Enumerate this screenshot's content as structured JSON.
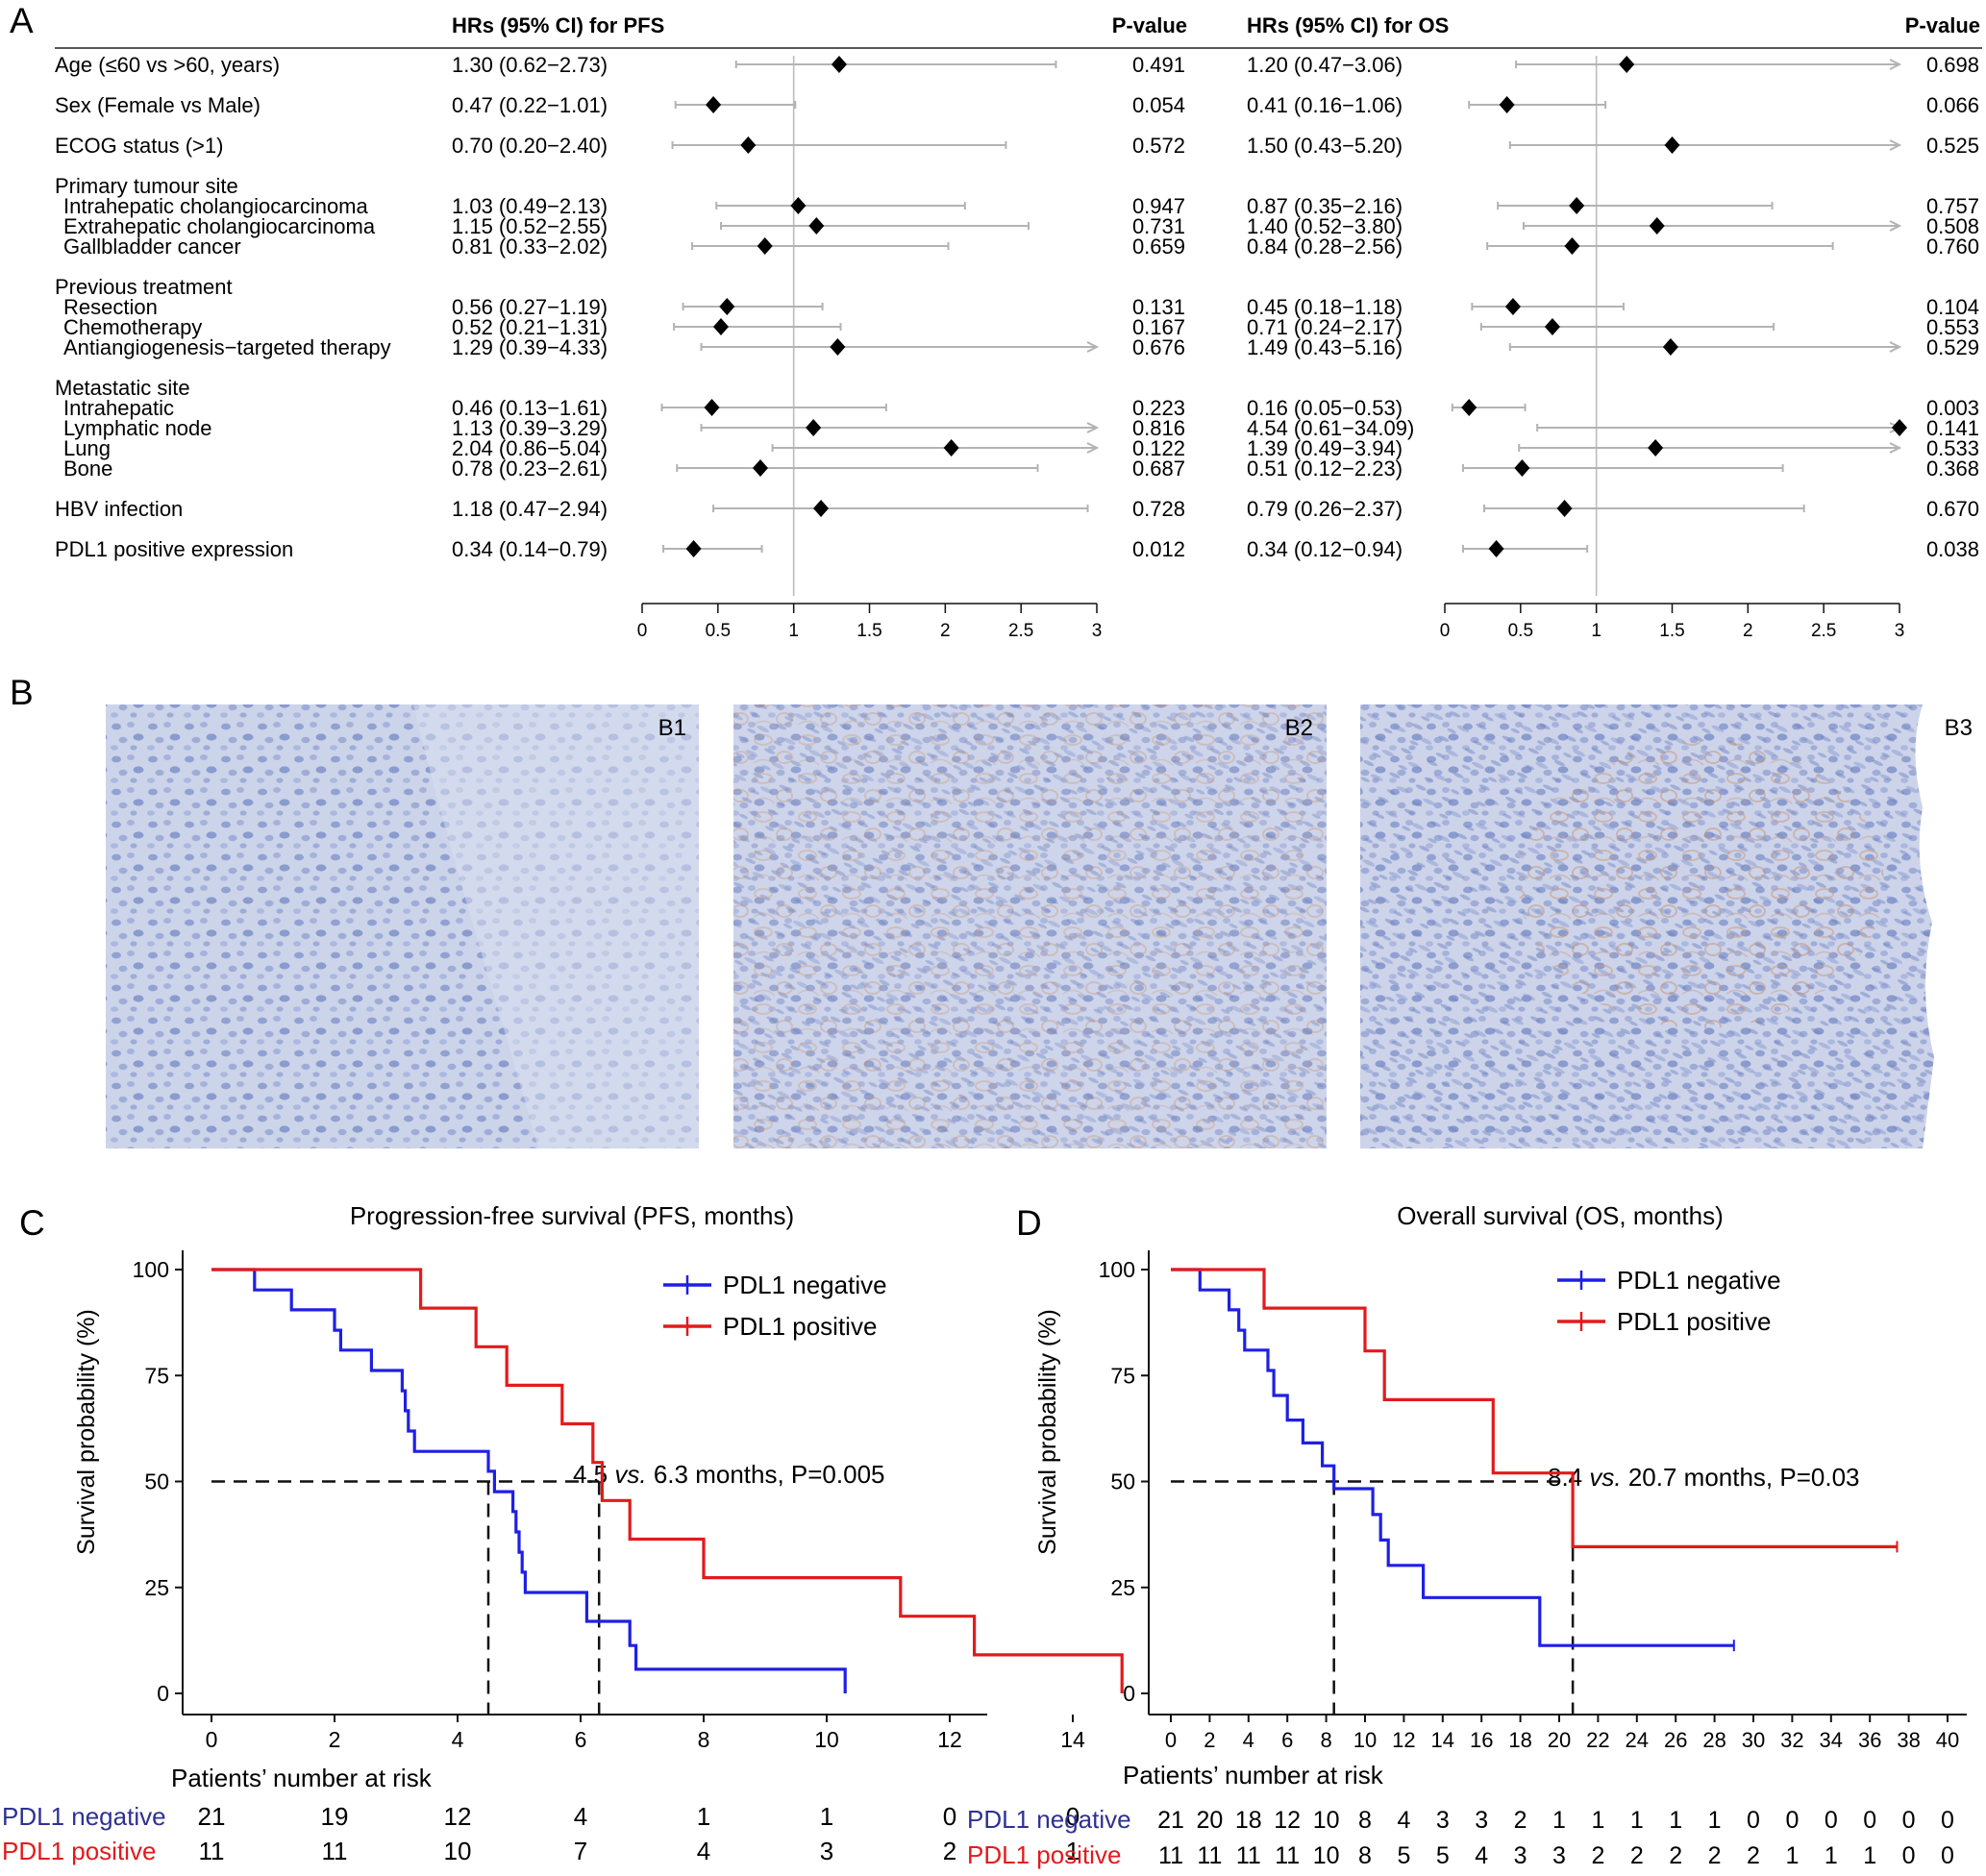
{
  "panel_labels": {
    "a": "A",
    "b": "B",
    "c": "C",
    "d": "D"
  },
  "forest": {
    "headers": {
      "pfs_hr": "HRs (95% CI) for PFS",
      "pfs_p": "P-value",
      "os_hr": "HRs (95% CI) for OS",
      "os_p": "P-value"
    },
    "axis_ticks": [
      "0",
      "0.5",
      "1",
      "1.5",
      "2",
      "2.5",
      "3"
    ]
  },
  "micrographs": {
    "labels": [
      "B1",
      "B2",
      "B3"
    ]
  },
  "km": {
    "c_title": "Progression-free survival (PFS, months)",
    "d_title": "Overall survival (OS, months)",
    "ylabel": "Survival probability (%)",
    "risk_title": "Patients’ number at risk",
    "neg_label": "PDL1 negative",
    "pos_label": "PDL1 positive",
    "c_annotation": {
      "a": "4.5 ",
      "b": "vs.",
      "c": " 6.3 months, P=0.005"
    },
    "d_annotation": {
      "a": "8.4 ",
      "b": "vs.",
      "c": " 20.7 months, P=0.03"
    }
  },
  "colors": {
    "negative": "#1f1fe6",
    "positive": "#e31a1c",
    "risk_negative": "#2e3192",
    "ci_line": "#b3b3b3"
  },
  "chart_data": [
    {
      "type": "forest",
      "panel": "A",
      "scale": [
        0,
        3
      ],
      "ref_line": 1,
      "rows": [
        {
          "label": "Age (≤60 vs >60, years)",
          "pfs": {
            "text": "1.30 (0.62−2.73)",
            "hr": 1.3,
            "lo": 0.62,
            "hi": 2.73,
            "p": "0.491"
          },
          "os": {
            "text": "1.20 (0.47−3.06)",
            "hr": 1.2,
            "lo": 0.47,
            "hi": 3.06,
            "p": "0.698"
          }
        },
        {
          "label": "Sex (Female vs Male)",
          "pfs": {
            "text": "0.47 (0.22−1.01)",
            "hr": 0.47,
            "lo": 0.22,
            "hi": 1.01,
            "p": "0.054"
          },
          "os": {
            "text": "0.41 (0.16−1.06)",
            "hr": 0.41,
            "lo": 0.16,
            "hi": 1.06,
            "p": "0.066"
          }
        },
        {
          "label": "ECOG status (>1)",
          "pfs": {
            "text": "0.70 (0.20−2.40)",
            "hr": 0.7,
            "lo": 0.2,
            "hi": 2.4,
            "p": "0.572"
          },
          "os": {
            "text": "1.50 (0.43−5.20)",
            "hr": 1.5,
            "lo": 0.43,
            "hi": 5.2,
            "p": "0.525"
          }
        },
        {
          "label": "Primary tumour site",
          "header": true
        },
        {
          "label": "Intrahepatic cholangiocarcinoma",
          "sub": true,
          "pfs": {
            "text": "1.03 (0.49−2.13)",
            "hr": 1.03,
            "lo": 0.49,
            "hi": 2.13,
            "p": "0.947"
          },
          "os": {
            "text": "0.87 (0.35−2.16)",
            "hr": 0.87,
            "lo": 0.35,
            "hi": 2.16,
            "p": "0.757"
          }
        },
        {
          "label": "Extrahepatic cholangiocarcinoma",
          "sub": true,
          "pfs": {
            "text": "1.15 (0.52−2.55)",
            "hr": 1.15,
            "lo": 0.52,
            "hi": 2.55,
            "p": "0.731"
          },
          "os": {
            "text": "1.40 (0.52−3.80)",
            "hr": 1.4,
            "lo": 0.52,
            "hi": 3.8,
            "p": "0.508"
          }
        },
        {
          "label": "Gallbladder cancer",
          "sub": true,
          "pfs": {
            "text": "0.81 (0.33−2.02)",
            "hr": 0.81,
            "lo": 0.33,
            "hi": 2.02,
            "p": "0.659"
          },
          "os": {
            "text": "0.84 (0.28−2.56)",
            "hr": 0.84,
            "lo": 0.28,
            "hi": 2.56,
            "p": "0.760"
          }
        },
        {
          "label": "Previous treatment",
          "header": true
        },
        {
          "label": "Resection",
          "sub": true,
          "pfs": {
            "text": "0.56 (0.27−1.19)",
            "hr": 0.56,
            "lo": 0.27,
            "hi": 1.19,
            "p": "0.131"
          },
          "os": {
            "text": "0.45 (0.18−1.18)",
            "hr": 0.45,
            "lo": 0.18,
            "hi": 1.18,
            "p": "0.104"
          }
        },
        {
          "label": "Chemotherapy",
          "sub": true,
          "pfs": {
            "text": "0.52 (0.21−1.31)",
            "hr": 0.52,
            "lo": 0.21,
            "hi": 1.31,
            "p": "0.167"
          },
          "os": {
            "text": "0.71 (0.24−2.17)",
            "hr": 0.71,
            "lo": 0.24,
            "hi": 2.17,
            "p": "0.553"
          }
        },
        {
          "label": "Antiangiogenesis−targeted therapy",
          "sub": true,
          "pfs": {
            "text": "1.29 (0.39−4.33)",
            "hr": 1.29,
            "lo": 0.39,
            "hi": 4.33,
            "p": "0.676"
          },
          "os": {
            "text": "1.49 (0.43−5.16)",
            "hr": 1.49,
            "lo": 0.43,
            "hi": 5.16,
            "p": "0.529"
          }
        },
        {
          "label": "Metastatic site",
          "header": true
        },
        {
          "label": "Intrahepatic",
          "sub": true,
          "pfs": {
            "text": "0.46 (0.13−1.61)",
            "hr": 0.46,
            "lo": 0.13,
            "hi": 1.61,
            "p": "0.223"
          },
          "os": {
            "text": "0.16 (0.05−0.53)",
            "hr": 0.16,
            "lo": 0.05,
            "hi": 0.53,
            "p": "0.003"
          }
        },
        {
          "label": "Lymphatic node",
          "sub": true,
          "pfs": {
            "text": "1.13 (0.39−3.29)",
            "hr": 1.13,
            "lo": 0.39,
            "hi": 3.29,
            "p": "0.816"
          },
          "os": {
            "text": "4.54 (0.61−34.09)",
            "hr": 4.54,
            "lo": 0.61,
            "hi": 34.09,
            "p": "0.141"
          }
        },
        {
          "label": "Lung",
          "sub": true,
          "pfs": {
            "text": "2.04 (0.86−5.04)",
            "hr": 2.04,
            "lo": 0.86,
            "hi": 5.04,
            "p": "0.122"
          },
          "os": {
            "text": "1.39 (0.49−3.94)",
            "hr": 1.39,
            "lo": 0.49,
            "hi": 3.94,
            "p": "0.533"
          }
        },
        {
          "label": "Bone",
          "sub": true,
          "pfs": {
            "text": "0.78 (0.23−2.61)",
            "hr": 0.78,
            "lo": 0.23,
            "hi": 2.61,
            "p": "0.687"
          },
          "os": {
            "text": "0.51 (0.12−2.23)",
            "hr": 0.51,
            "lo": 0.12,
            "hi": 2.23,
            "p": "0.368"
          }
        },
        {
          "label": "HBV infection",
          "pfs": {
            "text": "1.18 (0.47−2.94)",
            "hr": 1.18,
            "lo": 0.47,
            "hi": 2.94,
            "p": "0.728"
          },
          "os": {
            "text": "0.79 (0.26−2.37)",
            "hr": 0.79,
            "lo": 0.26,
            "hi": 2.37,
            "p": "0.670"
          }
        },
        {
          "label": "PDL1 positive expression",
          "pfs": {
            "text": "0.34 (0.14−0.79)",
            "hr": 0.34,
            "lo": 0.14,
            "hi": 0.79,
            "p": "0.012"
          },
          "os": {
            "text": "0.34 (0.12−0.94)",
            "hr": 0.34,
            "lo": 0.12,
            "hi": 0.94,
            "p": "0.038"
          }
        }
      ]
    },
    {
      "type": "line",
      "panel": "C",
      "xlim": [
        0,
        15
      ],
      "ylim": [
        0,
        100
      ],
      "xticks": [
        0,
        2,
        4,
        6,
        8,
        10,
        12,
        14
      ],
      "yticks": [
        0,
        25,
        50,
        75,
        100
      ],
      "median_line": 50,
      "medians": [
        4.5,
        6.3
      ],
      "series": [
        {
          "name": "PDL1 negative",
          "color": "#1f1fe6",
          "points": [
            [
              0,
              100
            ],
            [
              0.7,
              100
            ],
            [
              0.7,
              95.2
            ],
            [
              1.3,
              95.2
            ],
            [
              1.3,
              90.5
            ],
            [
              2.0,
              90.5
            ],
            [
              2.0,
              85.7
            ],
            [
              2.1,
              85.7
            ],
            [
              2.1,
              81.0
            ],
            [
              2.6,
              81.0
            ],
            [
              2.6,
              76.2
            ],
            [
              3.1,
              76.2
            ],
            [
              3.1,
              71.4
            ],
            [
              3.15,
              71.4
            ],
            [
              3.15,
              66.7
            ],
            [
              3.2,
              66.7
            ],
            [
              3.2,
              61.9
            ],
            [
              3.3,
              61.9
            ],
            [
              3.3,
              57.1
            ],
            [
              4.5,
              57.1
            ],
            [
              4.5,
              52.4
            ],
            [
              4.6,
              52.4
            ],
            [
              4.6,
              47.6
            ],
            [
              4.9,
              47.6
            ],
            [
              4.9,
              42.9
            ],
            [
              4.95,
              42.9
            ],
            [
              4.95,
              38.1
            ],
            [
              5.0,
              38.1
            ],
            [
              5.0,
              33.3
            ],
            [
              5.05,
              33.3
            ],
            [
              5.05,
              28.6
            ],
            [
              5.1,
              28.6
            ],
            [
              5.1,
              23.8
            ],
            [
              6.1,
              23.8
            ],
            [
              6.1,
              17.0
            ],
            [
              6.8,
              17.0
            ],
            [
              6.8,
              11.3
            ],
            [
              6.9,
              11.3
            ],
            [
              6.9,
              5.7
            ],
            [
              10.3,
              5.7
            ],
            [
              10.3,
              0
            ]
          ]
        },
        {
          "name": "PDL1 positive",
          "color": "#e31a1c",
          "points": [
            [
              0,
              100
            ],
            [
              3.4,
              100
            ],
            [
              3.4,
              90.9
            ],
            [
              4.3,
              90.9
            ],
            [
              4.3,
              81.8
            ],
            [
              4.8,
              81.8
            ],
            [
              4.8,
              72.7
            ],
            [
              5.7,
              72.7
            ],
            [
              5.7,
              63.6
            ],
            [
              6.2,
              63.6
            ],
            [
              6.2,
              54.5
            ],
            [
              6.35,
              54.5
            ],
            [
              6.35,
              45.5
            ],
            [
              6.8,
              45.5
            ],
            [
              6.8,
              36.4
            ],
            [
              8.0,
              36.4
            ],
            [
              8.0,
              27.3
            ],
            [
              11.2,
              27.3
            ],
            [
              11.2,
              18.2
            ],
            [
              12.4,
              18.2
            ],
            [
              12.4,
              9.1
            ],
            [
              14.8,
              9.1
            ],
            [
              14.8,
              0
            ]
          ]
        }
      ],
      "risk_table": {
        "times": [
          0,
          2,
          4,
          6,
          8,
          10,
          12,
          14
        ],
        "negative": [
          "21",
          "19",
          "12",
          "4",
          "1",
          "1",
          "0",
          "0"
        ],
        "positive": [
          "11",
          "11",
          "10",
          "7",
          "4",
          "3",
          "2",
          "1"
        ]
      }
    },
    {
      "type": "line",
      "panel": "D",
      "xlim": [
        0,
        40
      ],
      "ylim": [
        0,
        100
      ],
      "xticks": [
        0,
        2,
        4,
        6,
        8,
        10,
        12,
        14,
        16,
        18,
        20,
        22,
        24,
        26,
        28,
        30,
        32,
        34,
        36,
        38,
        40
      ],
      "yticks": [
        0,
        25,
        50,
        75,
        100
      ],
      "median_line": 50,
      "medians": [
        8.4,
        20.7
      ],
      "series": [
        {
          "name": "PDL1 negative",
          "color": "#1f1fe6",
          "points": [
            [
              0,
              100
            ],
            [
              1.5,
              100
            ],
            [
              1.5,
              95.2
            ],
            [
              3.0,
              95.2
            ],
            [
              3.0,
              90.5
            ],
            [
              3.5,
              90.5
            ],
            [
              3.5,
              85.7
            ],
            [
              3.8,
              85.7
            ],
            [
              3.8,
              81.0
            ],
            [
              5.0,
              81.0
            ],
            [
              5.0,
              76.2
            ],
            [
              5.3,
              76.2
            ],
            [
              5.3,
              70.3
            ],
            [
              6.0,
              70.3
            ],
            [
              6.0,
              64.5
            ],
            [
              6.8,
              64.5
            ],
            [
              6.8,
              59.1
            ],
            [
              7.8,
              59.1
            ],
            [
              7.8,
              53.7
            ],
            [
              8.4,
              53.7
            ],
            [
              8.4,
              48.3
            ],
            [
              10.4,
              48.3
            ],
            [
              10.4,
              42.2
            ],
            [
              10.8,
              42.2
            ],
            [
              10.8,
              36.2
            ],
            [
              11.2,
              36.2
            ],
            [
              11.2,
              30.2
            ],
            [
              13.0,
              30.2
            ],
            [
              13.0,
              22.6
            ],
            [
              19.0,
              22.6
            ],
            [
              19.0,
              11.3
            ],
            [
              29.0,
              11.3
            ]
          ]
        },
        {
          "name": "PDL1 positive",
          "color": "#e31a1c",
          "points": [
            [
              0,
              100
            ],
            [
              4.8,
              100
            ],
            [
              4.8,
              90.9
            ],
            [
              10.0,
              90.9
            ],
            [
              10.0,
              80.8
            ],
            [
              11.0,
              80.8
            ],
            [
              11.0,
              69.3
            ],
            [
              16.6,
              69.3
            ],
            [
              16.6,
              52.0
            ],
            [
              20.7,
              52.0
            ],
            [
              20.7,
              34.6
            ],
            [
              37.4,
              34.6
            ]
          ]
        }
      ],
      "risk_table": {
        "times": [
          0,
          2,
          4,
          6,
          8,
          10,
          12,
          14,
          16,
          18,
          20,
          22,
          24,
          26,
          28,
          30,
          32,
          34,
          36,
          38,
          40
        ],
        "negative": [
          "21",
          "20",
          "18",
          "12",
          "10",
          "8",
          "4",
          "3",
          "3",
          "2",
          "1",
          "1",
          "1",
          "1",
          "1",
          "0",
          "0",
          "0",
          "0",
          "0",
          "0"
        ],
        "positive": [
          "11",
          "11",
          "11",
          "11",
          "10",
          "8",
          "5",
          "5",
          "4",
          "3",
          "3",
          "2",
          "2",
          "2",
          "2",
          "2",
          "1",
          "1",
          "1",
          "0",
          "0"
        ]
      }
    }
  ]
}
